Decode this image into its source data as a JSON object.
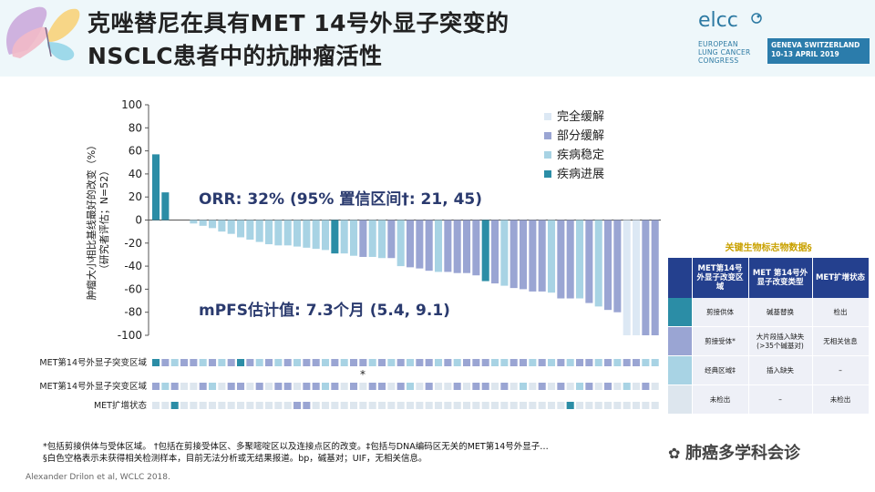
{
  "title": {
    "line1": "克唑替尼在具有MET 14号外显子突变的",
    "line2": "NSCLC患者中的抗肿瘤活性"
  },
  "logo": {
    "name": "elcc",
    "line1": "EUROPEAN",
    "line2": "LUNG CANCER",
    "line3": "CONGRESS",
    "location": "GENEVA SWITZERLAND",
    "date": "10-13 APRIL 2019"
  },
  "colors": {
    "complete_response": "#dce8f4",
    "partial_response": "#9aa5d3",
    "stable_disease": "#a8d3e4",
    "progressive_disease": "#2b8da6",
    "empty": "#dde6ee",
    "table_header": "#24408e",
    "accent": "#2b7cab"
  },
  "chart_data": {
    "type": "bar",
    "ylabel": "肿瘤大小相比基线最好的改变（%）（研究者评估；N=52）",
    "ylabel_lines": [
      "肿瘤大小相比基线最好的改变（%）",
      "（研究者评估；N=52）"
    ],
    "ylim": [
      -100,
      100
    ],
    "yticks": [
      100,
      80,
      60,
      40,
      20,
      0,
      -20,
      -40,
      -60,
      -80,
      -100
    ],
    "legend_position": "top-right",
    "legend": [
      {
        "label": "完全缓解",
        "key": "CR"
      },
      {
        "label": "部分缓解",
        "key": "PR"
      },
      {
        "label": "疾病稳定",
        "key": "SD"
      },
      {
        "label": "疾病进展",
        "key": "PD"
      }
    ],
    "annotations": [
      {
        "text": "ORR: 32% (95% 置信区间†: 21, 45)"
      },
      {
        "text": "mPFS估计值: 7.3个月 (5.4, 9.1)"
      }
    ],
    "values": [
      57,
      24,
      null,
      null,
      -3,
      -5,
      -7,
      -10,
      -12,
      -15,
      -17,
      -19,
      -21,
      -22,
      -22,
      -23,
      -24,
      -25,
      -26,
      -29,
      -29,
      -31,
      -32,
      -32,
      -33,
      -33,
      -40,
      -41,
      -42,
      -44,
      -45,
      -45,
      -46,
      -46,
      -48,
      -53,
      -55,
      -57,
      -59,
      -60,
      -62,
      -62,
      -63,
      -68,
      -68,
      -68,
      -72,
      -75,
      -78,
      -80,
      -100,
      -100,
      -100,
      -100
    ],
    "response": [
      "PD",
      "PD",
      null,
      null,
      "SD",
      "SD",
      "SD",
      "SD",
      "SD",
      "SD",
      "SD",
      "SD",
      "SD",
      "SD",
      "SD",
      "SD",
      "SD",
      "SD",
      "SD",
      "PD",
      "SD",
      "SD",
      "PR",
      "SD",
      "SD",
      "PR",
      "SD",
      "PR",
      "PR",
      "PR",
      "SD",
      "PR",
      "PR",
      "PR",
      "PR",
      "PD",
      "PR",
      "SD",
      "PR",
      "PR",
      "PR",
      "PR",
      "SD",
      "PR",
      "PR",
      "SD",
      "PR",
      "SD",
      "PR",
      "PR",
      "CR",
      "CR",
      "PR",
      "PR"
    ],
    "tracks": [
      {
        "label": "MET第14号外显子突变区域",
        "note": "*",
        "cells": [
          "PD",
          "PR",
          "SD",
          "PR",
          "PR",
          "SD",
          "PR",
          "SD",
          "PR",
          "PD",
          "PR",
          "SD",
          "PR",
          "SD",
          "PR",
          "SD",
          "PR",
          "PR",
          "SD",
          "PR",
          "SD",
          "PR",
          "PR",
          "SD",
          "PR",
          "SD",
          "PR",
          "SD",
          "PR",
          "PR",
          "SD",
          "PR",
          "SD",
          "PR",
          "PR",
          "PR",
          "SD",
          "SD",
          "PR",
          "PR",
          "SD",
          "PR",
          "SD",
          "PR",
          "SD",
          "PR",
          "PR",
          "SD",
          "PR",
          "SD",
          "PR",
          "PR",
          "SD",
          "SD"
        ]
      },
      {
        "label": "MET第14号外显子突变区域",
        "cells": [
          "PR",
          "SD",
          "PR",
          "empty",
          "empty",
          "PR",
          "SD",
          "empty",
          "PR",
          "PR",
          "empty",
          "PR",
          "empty",
          "PR",
          "PR",
          "empty",
          "PR",
          "PR",
          "SD",
          "PR",
          "empty",
          "PR",
          "empty",
          "PR",
          "PR",
          "empty",
          "PR",
          "SD",
          "empty",
          "PR",
          "empty",
          "empty",
          "PR",
          "empty",
          "PR",
          "PR",
          "empty",
          "PR",
          "empty",
          "SD",
          "empty",
          "PR",
          "empty",
          "PR",
          "empty",
          "SD",
          "PR",
          "empty",
          "PR",
          "empty",
          "SD",
          "empty",
          "PR",
          "empty"
        ]
      },
      {
        "label": "MET扩增状态",
        "cells": [
          "empty",
          "empty",
          "PD",
          "empty",
          "empty",
          "empty",
          "empty",
          "empty",
          "empty",
          "empty",
          "empty",
          "empty",
          "empty",
          "empty",
          "empty",
          "PR",
          "PR",
          "empty",
          "empty",
          "empty",
          "empty",
          "empty",
          "empty",
          "empty",
          "empty",
          "empty",
          "empty",
          "empty",
          "empty",
          "empty",
          "empty",
          "empty",
          "empty",
          "empty",
          "empty",
          "empty",
          "empty",
          "empty",
          "empty",
          "empty",
          "empty",
          "empty",
          "empty",
          "empty",
          "PD",
          "empty",
          "empty",
          "empty",
          "empty",
          "empty",
          "empty",
          "empty",
          "empty",
          "empty"
        ]
      }
    ]
  },
  "biomarker_table": {
    "title": "关键生物标志物数据§",
    "headers": [
      "MET第14号外显子改变区域",
      "MET 第14号外显子改变类型",
      "MET扩增状态"
    ],
    "rows": [
      {
        "swatch": "PD",
        "cells": [
          "剪接供体",
          "碱基替换",
          "检出"
        ]
      },
      {
        "swatch": "PR",
        "cells": [
          "剪接受体*",
          "大片段插入缺失(>35个碱基对)",
          "无相关信息"
        ]
      },
      {
        "swatch": "SD",
        "cells": [
          "经典区域‡",
          "插入缺失",
          "–"
        ]
      },
      {
        "swatch": "empty",
        "cells": [
          "未检出",
          "–",
          "未检出"
        ]
      }
    ]
  },
  "footnote": {
    "line1": "*包括剪接供体与受体区域。 †包括在剪接受体区、多聚嘧啶区以及连接点区的改变。‡包括与DNA编码区无关的MET第14号外显子…",
    "line2": "§白色空格表示未获得相关检测样本，目前无法分析或无结果报道。bp，碱基对；UIF，无相关信息。"
  },
  "citation": "Alexander Drilon et al, WCLC 2018.",
  "watermark": "肺癌多学科会诊"
}
